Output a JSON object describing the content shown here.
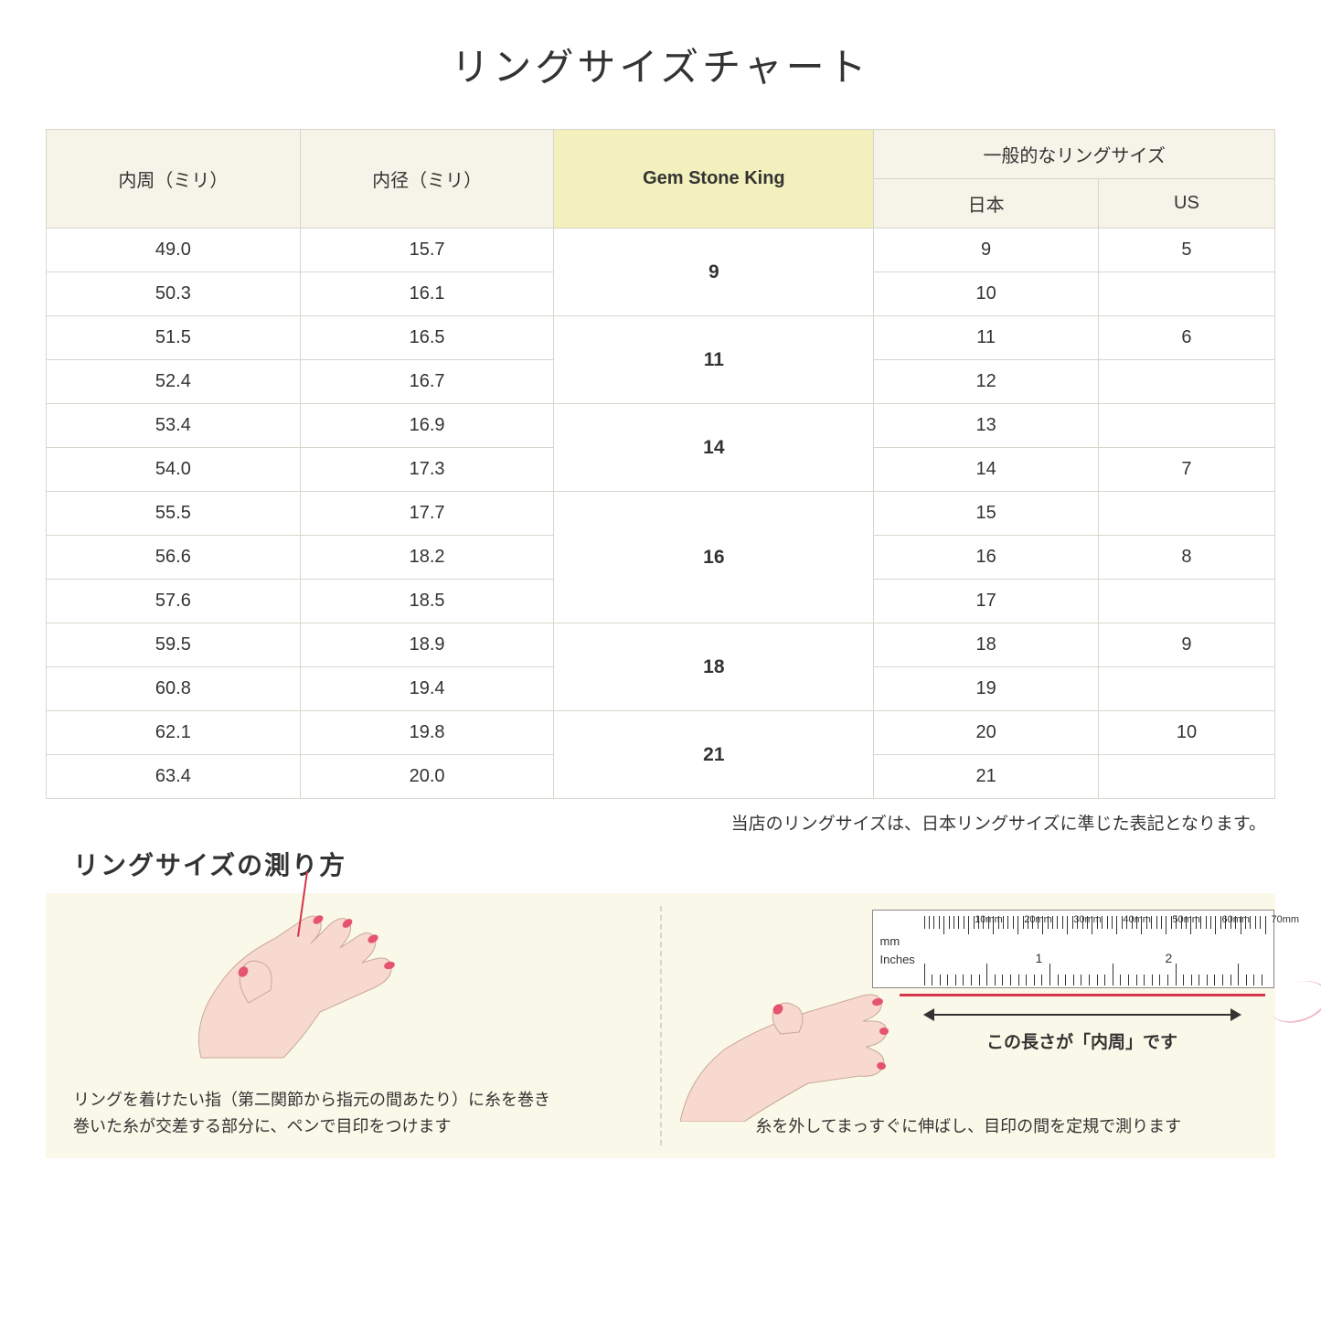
{
  "title": "リングサイズチャート",
  "table": {
    "headers": {
      "col1": "内周（ミリ）",
      "col2": "内径（ミリ）",
      "col3": "Gem Stone King",
      "groupTop": "一般的なリングサイズ",
      "col4": "日本",
      "col5": "US"
    },
    "header_bg": "#f6f4e8",
    "highlight_bg": "#f3f0bd",
    "border_color": "#d8d6cc",
    "groups": [
      {
        "gsk": "9",
        "rows": [
          {
            "c": "49.0",
            "d": "15.7",
            "jp": "9",
            "us": "5"
          },
          {
            "c": "50.3",
            "d": "16.1",
            "jp": "10",
            "us": ""
          }
        ]
      },
      {
        "gsk": "11",
        "rows": [
          {
            "c": "51.5",
            "d": "16.5",
            "jp": "11",
            "us": "6"
          },
          {
            "c": "52.4",
            "d": "16.7",
            "jp": "12",
            "us": ""
          }
        ]
      },
      {
        "gsk": "14",
        "rows": [
          {
            "c": "53.4",
            "d": "16.9",
            "jp": "13",
            "us": ""
          },
          {
            "c": "54.0",
            "d": "17.3",
            "jp": "14",
            "us": "7"
          }
        ]
      },
      {
        "gsk": "16",
        "rows": [
          {
            "c": "55.5",
            "d": "17.7",
            "jp": "15",
            "us": ""
          },
          {
            "c": "56.6",
            "d": "18.2",
            "jp": "16",
            "us": "8"
          },
          {
            "c": "57.6",
            "d": "18.5",
            "jp": "17",
            "us": ""
          }
        ]
      },
      {
        "gsk": "18",
        "rows": [
          {
            "c": "59.5",
            "d": "18.9",
            "jp": "18",
            "us": "9"
          },
          {
            "c": "60.8",
            "d": "19.4",
            "jp": "19",
            "us": ""
          }
        ]
      },
      {
        "gsk": "21",
        "rows": [
          {
            "c": "62.1",
            "d": "19.8",
            "jp": "20",
            "us": "10"
          },
          {
            "c": "63.4",
            "d": "20.0",
            "jp": "21",
            "us": ""
          }
        ]
      }
    ]
  },
  "note": "当店のリングサイズは、日本リングサイズに準じた表記となります。",
  "howto": {
    "title": "リングサイズの測り方",
    "panel_bg": "#faf8e8",
    "thread_color": "#d4354a",
    "skin_color": "#f7d9cf",
    "nail_color": "#e5536f",
    "left_caption_l1": "リングを着けたい指（第二関節から指元の間あたり）に糸を巻き",
    "left_caption_l2": "巻いた糸が交差する部分に、ペンで目印をつけます",
    "right_arrow_label": "この長さが「内周」です",
    "right_caption": "糸を外してまっすぐに伸ばし、目印の間を定規で測ります",
    "ruler": {
      "mm_label": "mm",
      "in_label": "Inches",
      "mm_marks": [
        "10mm",
        "20mm",
        "30mm",
        "40mm",
        "50mm",
        "60mm",
        "70mm"
      ],
      "in_marks": [
        "1",
        "2"
      ]
    }
  }
}
